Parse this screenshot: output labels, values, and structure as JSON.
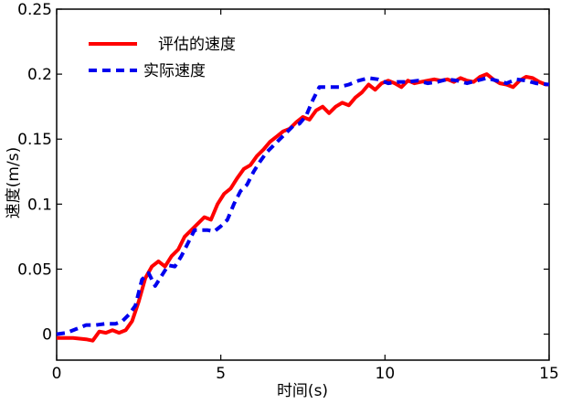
{
  "chart_data": {
    "type": "line",
    "title": "",
    "xlabel": "时间(s)",
    "ylabel": "速度(m/s)",
    "xlim": [
      0,
      15
    ],
    "ylim": [
      -0.02,
      0.25
    ],
    "xticks": [
      0,
      5,
      10,
      15
    ],
    "xtick_labels": [
      "0",
      "5",
      "10",
      "15"
    ],
    "yticks": [
      0,
      0.05,
      0.1,
      0.15,
      0.2,
      0.25
    ],
    "ytick_labels": [
      "0",
      "0.05",
      "0.1",
      "0.15",
      "0.2",
      "0.25"
    ],
    "grid": false,
    "legend_position": "top-left",
    "series": [
      {
        "name": "评估的速度",
        "legend_label": "评估的速度",
        "color": "#ff0000",
        "style": "solid",
        "x": [
          0,
          0.5,
          0.9,
          1.1,
          1.3,
          1.5,
          1.7,
          1.9,
          2.1,
          2.3,
          2.5,
          2.7,
          2.9,
          3.1,
          3.3,
          3.5,
          3.7,
          3.9,
          4.1,
          4.3,
          4.5,
          4.7,
          4.9,
          5.1,
          5.3,
          5.5,
          5.7,
          5.9,
          6.1,
          6.3,
          6.5,
          6.7,
          6.9,
          7.1,
          7.3,
          7.5,
          7.7,
          7.9,
          8.1,
          8.3,
          8.5,
          8.7,
          8.9,
          9.1,
          9.3,
          9.5,
          9.7,
          9.9,
          10.1,
          10.3,
          10.5,
          10.7,
          10.9,
          11.1,
          11.3,
          11.5,
          11.7,
          11.9,
          12.1,
          12.3,
          12.5,
          12.7,
          12.9,
          13.1,
          13.3,
          13.5,
          13.7,
          13.9,
          14.1,
          14.3,
          14.5,
          14.7,
          14.9,
          15.0
        ],
        "values": [
          -0.003,
          -0.003,
          -0.004,
          -0.005,
          0.002,
          0.001,
          0.003,
          0.001,
          0.003,
          0.01,
          0.025,
          0.043,
          0.052,
          0.056,
          0.052,
          0.06,
          0.065,
          0.075,
          0.08,
          0.085,
          0.09,
          0.088,
          0.1,
          0.108,
          0.112,
          0.12,
          0.127,
          0.13,
          0.137,
          0.142,
          0.148,
          0.152,
          0.156,
          0.158,
          0.163,
          0.167,
          0.165,
          0.172,
          0.175,
          0.17,
          0.175,
          0.178,
          0.176,
          0.182,
          0.186,
          0.192,
          0.188,
          0.193,
          0.195,
          0.193,
          0.19,
          0.195,
          0.193,
          0.194,
          0.195,
          0.196,
          0.195,
          0.196,
          0.194,
          0.197,
          0.195,
          0.194,
          0.198,
          0.2,
          0.196,
          0.193,
          0.192,
          0.19,
          0.195,
          0.198,
          0.197,
          0.194,
          0.192,
          0.192
        ]
      },
      {
        "name": "实际速度",
        "legend_label": "实际速度",
        "color": "#0000ee",
        "style": "dashed",
        "x": [
          0,
          0.3,
          0.6,
          0.9,
          1.2,
          1.5,
          1.8,
          2.0,
          2.2,
          2.4,
          2.6,
          2.8,
          3.0,
          3.2,
          3.4,
          3.6,
          3.8,
          4.0,
          4.2,
          4.4,
          4.6,
          4.8,
          5.0,
          5.2,
          5.4,
          5.6,
          5.8,
          6.0,
          6.2,
          6.4,
          6.6,
          6.8,
          7.0,
          7.2,
          7.4,
          7.6,
          7.8,
          8.0,
          8.3,
          8.6,
          8.9,
          9.2,
          9.5,
          9.8,
          10.1,
          10.4,
          10.7,
          11.0,
          11.3,
          11.6,
          11.9,
          12.2,
          12.5,
          12.8,
          13.1,
          13.4,
          13.7,
          14.0,
          14.3,
          14.6,
          15.0
        ],
        "values": [
          0,
          0.001,
          0.004,
          0.007,
          0.007,
          0.008,
          0.008,
          0.01,
          0.015,
          0.022,
          0.042,
          0.047,
          0.037,
          0.045,
          0.053,
          0.052,
          0.06,
          0.07,
          0.08,
          0.08,
          0.08,
          0.079,
          0.083,
          0.088,
          0.1,
          0.11,
          0.115,
          0.125,
          0.133,
          0.14,
          0.145,
          0.15,
          0.155,
          0.16,
          0.162,
          0.168,
          0.18,
          0.19,
          0.19,
          0.19,
          0.192,
          0.195,
          0.197,
          0.196,
          0.193,
          0.194,
          0.194,
          0.195,
          0.193,
          0.194,
          0.196,
          0.195,
          0.193,
          0.195,
          0.197,
          0.195,
          0.193,
          0.196,
          0.195,
          0.193,
          0.192
        ]
      }
    ]
  }
}
